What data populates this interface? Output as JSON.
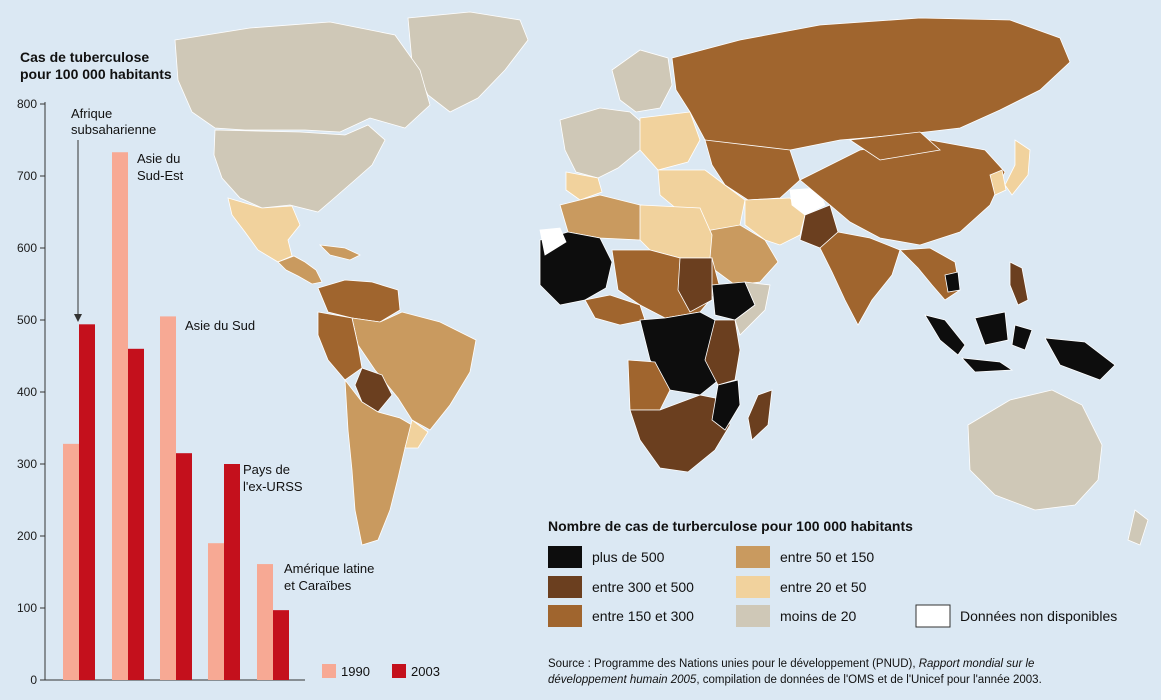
{
  "colors": {
    "ocean": "#dbe8f3",
    "bar_1990": "#f7a994",
    "bar_2003": "#c4101c",
    "class_plus_500": "#0d0d0d",
    "class_300_500": "#6b3f1f",
    "class_150_300": "#a0652e",
    "class_50_150": "#c99a5f",
    "class_20_50": "#f1d29d",
    "class_moins_20": "#cfc8b7",
    "class_nd": "#ffffff"
  },
  "chart_data": {
    "type": "bar",
    "title": "Cas de tuberculose pour 100 000 habitants",
    "title_lines": [
      "Cas de tuberculose",
      "pour 100 000 habitants"
    ],
    "ylim": [
      0,
      800
    ],
    "yticks": [
      "0",
      "100",
      "200",
      "300",
      "400",
      "500",
      "600",
      "700",
      "800"
    ],
    "categories": [
      "Afrique subsaharienne",
      "Asie du Sud-Est",
      "Asie du Sud",
      "Pays de l'ex-URSS",
      "Amérique latine et Caraïbes"
    ],
    "series": [
      {
        "name": "1990",
        "values": [
          328,
          733,
          505,
          190,
          161
        ]
      },
      {
        "name": "2003",
        "values": [
          494,
          460,
          315,
          300,
          97
        ]
      }
    ]
  },
  "labels": {
    "cat0_l1": "Afrique",
    "cat0_l2": "subsaharienne",
    "cat1_l1": "Asie du",
    "cat1_l2": "Sud-Est",
    "cat2_l1": "Asie du Sud",
    "cat3_l1": "Pays de",
    "cat3_l2": "l'ex-URSS",
    "cat4_l1": "Amérique latine",
    "cat4_l2": "et Caraïbes"
  },
  "bar_legend": {
    "y1990": "1990",
    "y2003": "2003"
  },
  "map_legend": {
    "title": "Nombre de cas de turberculose pour 100 000 habitants",
    "items": [
      {
        "label": "plus de 500",
        "color": "#0d0d0d"
      },
      {
        "label": "entre 300 et 500",
        "color": "#6b3f1f"
      },
      {
        "label": "entre 150 et 300",
        "color": "#a0652e"
      },
      {
        "label": "entre 50 et 150",
        "color": "#c99a5f"
      },
      {
        "label": "entre 20 et 50",
        "color": "#f1d29d"
      },
      {
        "label": "moins de 20",
        "color": "#cfc8b7"
      },
      {
        "label": "Données non disponibles",
        "color": "#ffffff"
      }
    ]
  },
  "source": {
    "line1_a": "Source : Programme des Nations unies pour le développement (PNUD), ",
    "line1_b": "Rapport mondial sur le",
    "line2_a": "développement humain 2005",
    "line2_b": ", compilation de données de l'OMS et de l'Unicef pour l'année 2003."
  }
}
